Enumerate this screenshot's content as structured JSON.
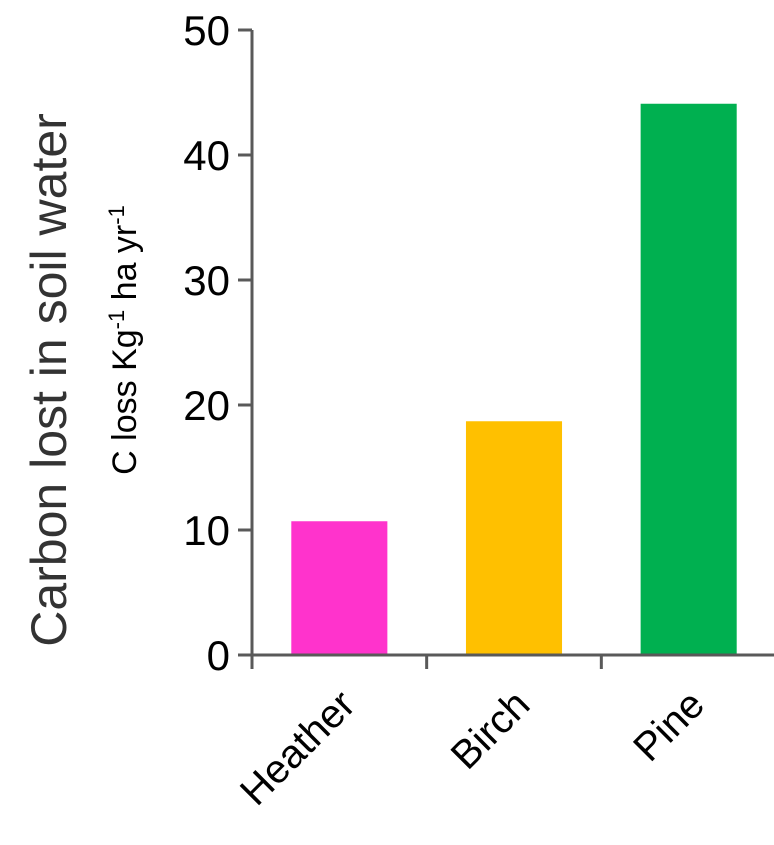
{
  "outer_label": "Carbon lost in soil water",
  "chart_data": {
    "type": "bar",
    "categories": [
      "Heather",
      "Birch",
      "Pine"
    ],
    "values": [
      10.7,
      18.7,
      44.1
    ],
    "colors": [
      "#FF33CC",
      "#FFC000",
      "#00B050"
    ],
    "ylabel": {
      "main": "C loss Kg",
      "sup1": "-1",
      "mid": " ha yr",
      "sup2": "-1"
    },
    "ylim": [
      0,
      50
    ],
    "yticks": [
      0,
      10,
      20,
      30,
      40,
      50
    ],
    "grid": false,
    "legend": "none",
    "axis_color": "#595959"
  }
}
